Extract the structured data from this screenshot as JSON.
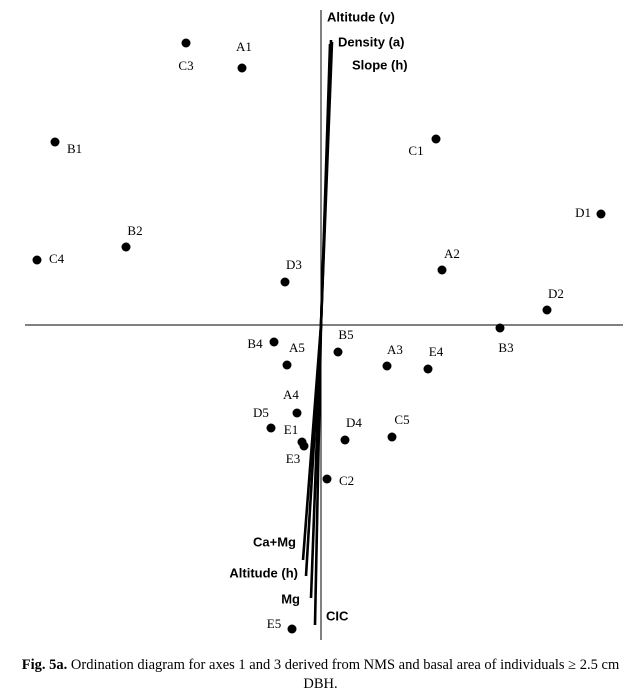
{
  "chart_data": {
    "type": "scatter",
    "labels": [
      "C3",
      "A1",
      "B1",
      "C1",
      "D1",
      "B2",
      "C4",
      "A2",
      "D3",
      "D2",
      "B3",
      "B4",
      "A5",
      "B5",
      "A3",
      "E4",
      "A4",
      "D5",
      "E1",
      "E3",
      "D4",
      "C5",
      "C2",
      "E5"
    ],
    "x": [
      -1.35,
      -0.79,
      -2.66,
      1.15,
      2.8,
      -1.95,
      -2.84,
      1.21,
      -0.36,
      2.26,
      1.79,
      -0.47,
      -0.34,
      0.17,
      0.66,
      1.07,
      -0.24,
      -0.5,
      -0.19,
      -0.17,
      0.24,
      0.71,
      0.06,
      -0.29
    ],
    "y": [
      2.82,
      2.57,
      1.83,
      1.86,
      1.11,
      0.78,
      0.65,
      0.55,
      0.43,
      0.15,
      -0.03,
      -0.17,
      -0.4,
      -0.27,
      -0.41,
      -0.44,
      -0.88,
      -1.03,
      -1.17,
      -1.21,
      -1.15,
      -1.12,
      -1.54,
      -3.04
    ],
    "color": "#000000",
    "vectors": {
      "labels": [
        "Altitude (v)",
        "Density (a)",
        "Slope (h)",
        "Ca+Mg",
        "Altitude (h)",
        "Mg",
        "CIC"
      ],
      "x": [
        0.1,
        0.11,
        0.09,
        -0.18,
        -0.15,
        -0.1,
        -0.06
      ],
      "y": [
        2.85,
        2.83,
        2.81,
        -2.35,
        -2.51,
        -2.73,
        -3.0
      ],
      "color": "#000000"
    },
    "xlim": [
      -2.96,
      3.02
    ],
    "ylim": [
      -3.15,
      3.15
    ],
    "caption_label": "Fig. 5a.",
    "caption": "Ordination diagram for axes 1 and 3 derived from NMS and basal area of individuals ≥ 2.5 cm DBH."
  }
}
